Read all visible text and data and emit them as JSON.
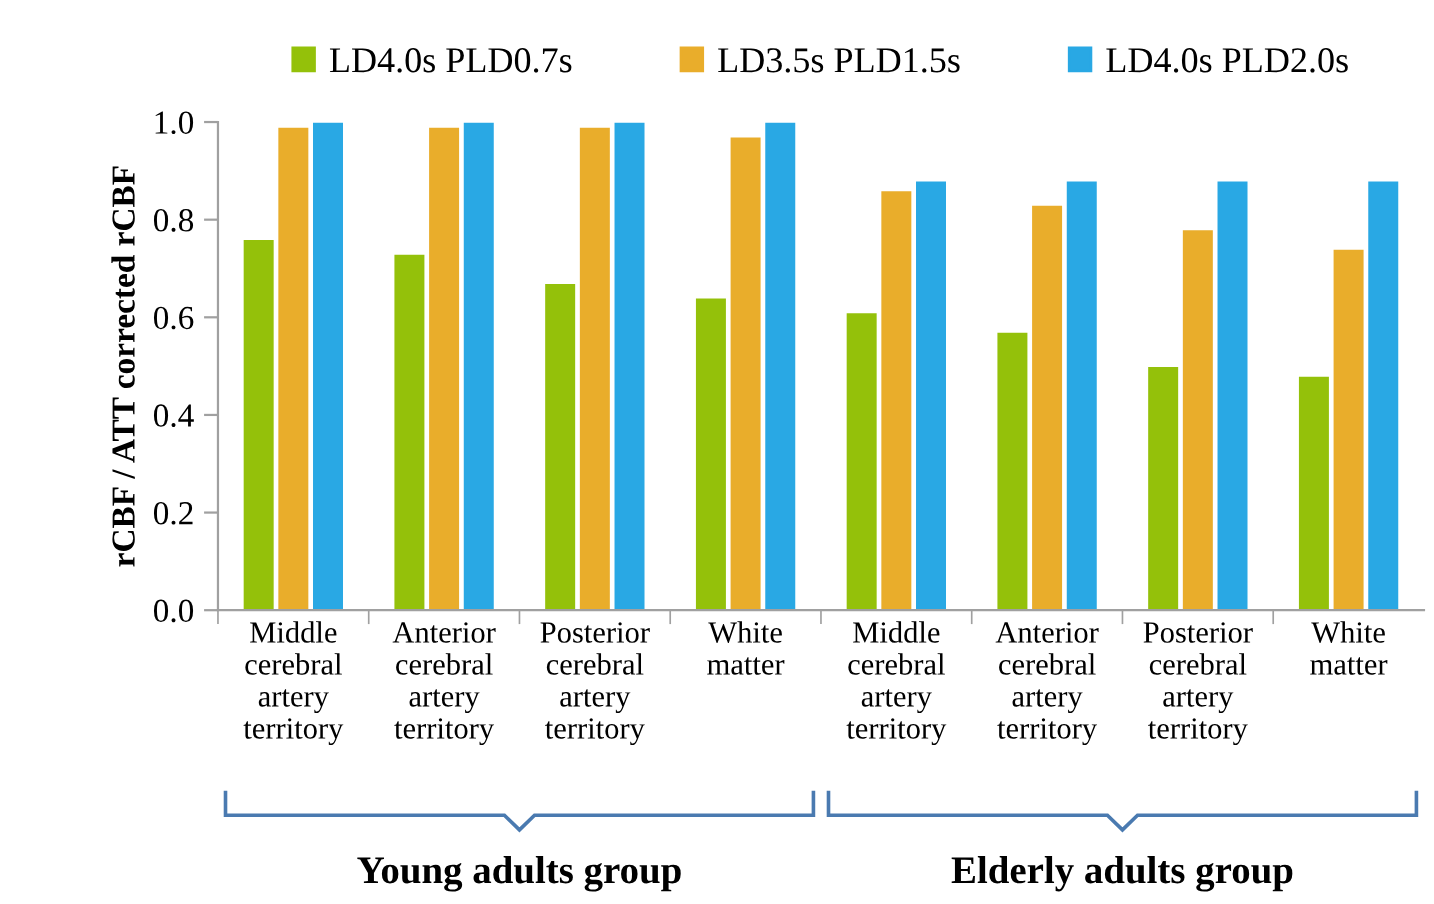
{
  "chart_data": {
    "type": "bar",
    "ylabel": "rCBF / ATT corrected rCBF",
    "categories": [
      "Middle\ncerebral\nartery\nterritory",
      "Anterior\ncerebral\nartery\nterritory",
      "Posterior\ncerebral\nartery\nterritory",
      "White\nmatter",
      "Middle\ncerebral\nartery\nterritory",
      "Anterior\ncerebral\nartery\nterritory",
      "Posterior\ncerebral\nartery\nterritory",
      "White\nmatter"
    ],
    "series": [
      {
        "name": "LD4.0s PLD0.7s",
        "color": "#94c10a",
        "values": [
          0.76,
          0.73,
          0.67,
          0.64,
          0.61,
          0.57,
          0.5,
          0.48
        ]
      },
      {
        "name": "LD3.5s PLD1.5s",
        "color": "#e9ad2b",
        "values": [
          0.99,
          0.99,
          0.99,
          0.97,
          0.86,
          0.83,
          0.78,
          0.74
        ]
      },
      {
        "name": "LD4.0s PLD2.0s",
        "color": "#29a8e4",
        "values": [
          1.0,
          1.0,
          1.0,
          1.0,
          0.88,
          0.88,
          0.88,
          0.88
        ]
      }
    ],
    "ylim": [
      0,
      1.0
    ],
    "yticks": [
      {
        "value": 0,
        "label": "0.0"
      },
      {
        "value": 0.2,
        "label": "0.2"
      },
      {
        "value": 0.4,
        "label": "0.4"
      },
      {
        "value": 0.6,
        "label": "0.6"
      },
      {
        "value": 0.8,
        "label": "0.8"
      },
      {
        "value": 1.0,
        "label": "1.0"
      }
    ],
    "grid": false,
    "legend": "top",
    "annotations": [
      "Young adults group",
      "Elderly adults group"
    ]
  }
}
